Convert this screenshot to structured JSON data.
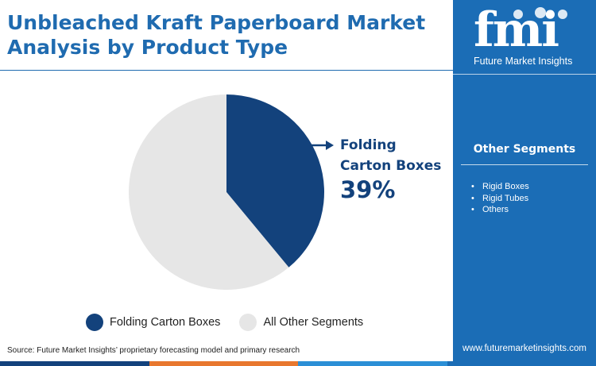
{
  "title": "Unbleached Kraft Paperboard Market Analysis by Product Type",
  "logo": {
    "brand": "fmi",
    "name": "Future Market Insights"
  },
  "sidebar": {
    "heading": "Other Segments",
    "items": [
      "Rigid Boxes",
      "Rigid Tubes",
      "Others"
    ],
    "url": "www.futuremarketinsights.com"
  },
  "callout": {
    "label": "Folding Carton Boxes",
    "value": "39%"
  },
  "source": "Source: Future Market Insights’ proprietary forecasting model and primary research",
  "colors": {
    "title": "#1f6bb0",
    "sidebar": "#1b6db6",
    "highlight": "#13427c",
    "other": "#e6e6e6"
  },
  "chart_data": {
    "type": "pie",
    "categories": [
      "Folding Carton Boxes",
      "All Other Segments"
    ],
    "values": [
      39,
      61
    ],
    "colors": [
      "#13427c",
      "#e6e6e6"
    ],
    "legend_position": "bottom"
  }
}
